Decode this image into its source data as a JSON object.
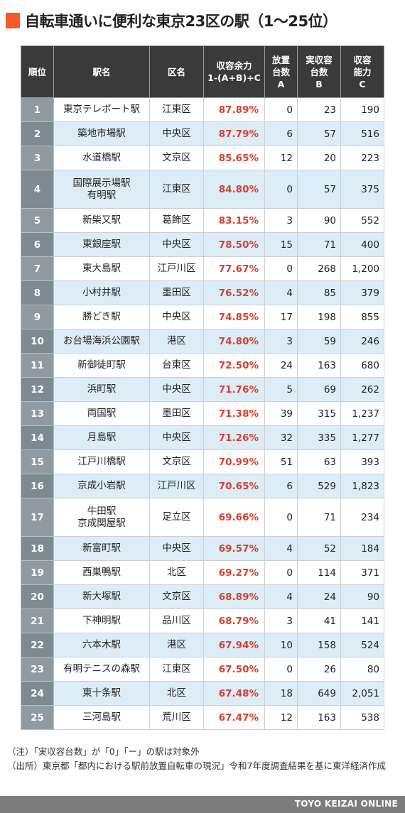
{
  "title": "自転車通いに便利な東京23区の駅（1〜25位）",
  "colors": {
    "accent": "#f25a29",
    "header": "#3a3a3a",
    "ratio_text": "#d8402a",
    "stripe": "#dcedf8",
    "footer": "#7d7d7d"
  },
  "chart_data": {
    "type": "table",
    "columns": [
      "順位",
      "駅名",
      "区名",
      "収容余力\n1-(A+B)÷C",
      "放置\n台数\nA",
      "実収容\n台数\nB",
      "収容\n能力\nC"
    ],
    "rows": [
      {
        "rank": "1",
        "station": "東京テレポート駅",
        "ward": "江東区",
        "ratio": "87.89%",
        "a": "0",
        "b": "23",
        "c": "190"
      },
      {
        "rank": "2",
        "station": "築地市場駅",
        "ward": "中央区",
        "ratio": "87.79%",
        "a": "6",
        "b": "57",
        "c": "516"
      },
      {
        "rank": "3",
        "station": "水道橋駅",
        "ward": "文京区",
        "ratio": "85.65%",
        "a": "12",
        "b": "20",
        "c": "223"
      },
      {
        "rank": "4",
        "station": "国際展示場駅\n有明駅",
        "ward": "江東区",
        "ratio": "84.80%",
        "a": "0",
        "b": "57",
        "c": "375"
      },
      {
        "rank": "5",
        "station": "新柴又駅",
        "ward": "葛飾区",
        "ratio": "83.15%",
        "a": "3",
        "b": "90",
        "c": "552"
      },
      {
        "rank": "6",
        "station": "東銀座駅",
        "ward": "中央区",
        "ratio": "78.50%",
        "a": "15",
        "b": "71",
        "c": "400"
      },
      {
        "rank": "7",
        "station": "東大島駅",
        "ward": "江戸川区",
        "ratio": "77.67%",
        "a": "0",
        "b": "268",
        "c": "1,200"
      },
      {
        "rank": "8",
        "station": "小村井駅",
        "ward": "墨田区",
        "ratio": "76.52%",
        "a": "4",
        "b": "85",
        "c": "379"
      },
      {
        "rank": "9",
        "station": "勝どき駅",
        "ward": "中央区",
        "ratio": "74.85%",
        "a": "17",
        "b": "198",
        "c": "855"
      },
      {
        "rank": "10",
        "station": "お台場海浜公園駅",
        "ward": "港区",
        "ratio": "74.80%",
        "a": "3",
        "b": "59",
        "c": "246"
      },
      {
        "rank": "11",
        "station": "新御徒町駅",
        "ward": "台東区",
        "ratio": "72.50%",
        "a": "24",
        "b": "163",
        "c": "680"
      },
      {
        "rank": "12",
        "station": "浜町駅",
        "ward": "中央区",
        "ratio": "71.76%",
        "a": "5",
        "b": "69",
        "c": "262"
      },
      {
        "rank": "13",
        "station": "両国駅",
        "ward": "墨田区",
        "ratio": "71.38%",
        "a": "39",
        "b": "315",
        "c": "1,237"
      },
      {
        "rank": "14",
        "station": "月島駅",
        "ward": "中央区",
        "ratio": "71.26%",
        "a": "32",
        "b": "335",
        "c": "1,277"
      },
      {
        "rank": "15",
        "station": "江戸川橋駅",
        "ward": "文京区",
        "ratio": "70.99%",
        "a": "51",
        "b": "63",
        "c": "393"
      },
      {
        "rank": "16",
        "station": "京成小岩駅",
        "ward": "江戸川区",
        "ratio": "70.65%",
        "a": "6",
        "b": "529",
        "c": "1,823"
      },
      {
        "rank": "17",
        "station": "牛田駅\n京成関屋駅",
        "ward": "足立区",
        "ratio": "69.66%",
        "a": "0",
        "b": "71",
        "c": "234"
      },
      {
        "rank": "18",
        "station": "新富町駅",
        "ward": "中央区",
        "ratio": "69.57%",
        "a": "4",
        "b": "52",
        "c": "184"
      },
      {
        "rank": "19",
        "station": "西巣鴨駅",
        "ward": "北区",
        "ratio": "69.27%",
        "a": "0",
        "b": "114",
        "c": "371"
      },
      {
        "rank": "20",
        "station": "新大塚駅",
        "ward": "文京区",
        "ratio": "68.89%",
        "a": "4",
        "b": "24",
        "c": "90"
      },
      {
        "rank": "21",
        "station": "下神明駅",
        "ward": "品川区",
        "ratio": "68.79%",
        "a": "3",
        "b": "41",
        "c": "141"
      },
      {
        "rank": "22",
        "station": "六本木駅",
        "ward": "港区",
        "ratio": "67.94%",
        "a": "10",
        "b": "158",
        "c": "524"
      },
      {
        "rank": "23",
        "station": "有明テニスの森駅",
        "ward": "江東区",
        "ratio": "67.50%",
        "a": "0",
        "b": "26",
        "c": "80"
      },
      {
        "rank": "24",
        "station": "東十条駅",
        "ward": "北区",
        "ratio": "67.48%",
        "a": "18",
        "b": "649",
        "c": "2,051"
      },
      {
        "rank": "25",
        "station": "三河島駅",
        "ward": "荒川区",
        "ratio": "67.47%",
        "a": "12",
        "b": "163",
        "c": "538"
      }
    ]
  },
  "notes": {
    "note1": "（注）「実収容台数」が「0」「ー」の駅は対象外",
    "note2": "（出所）東京都「都内における駅前放置自転車の現況」令和7年度調査結果を基に東洋経済作成"
  },
  "footer": {
    "brand": "TOYO KEIZAI ONLINE"
  }
}
